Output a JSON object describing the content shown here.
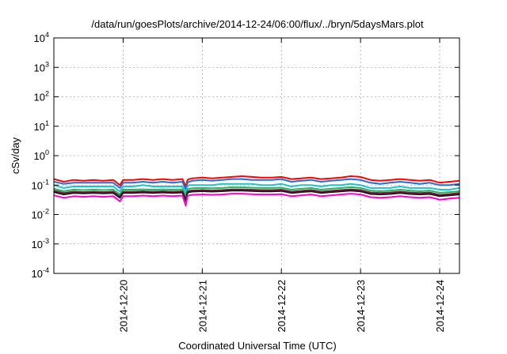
{
  "chart_data": {
    "type": "line",
    "title": "/data/run/goesPlots/archive/2014-12-24/06:00/flux/../bryn/5daysMars.plot",
    "xlabel": "Coordinated Universal Time (UTC)",
    "ylabel": "cSv/day",
    "yscale": "log",
    "ylim": [
      0.0001,
      10000
    ],
    "y_ticks": [
      {
        "value": 0.0001,
        "base": "10",
        "exp": "-4"
      },
      {
        "value": 0.001,
        "base": "10",
        "exp": "-3"
      },
      {
        "value": 0.01,
        "base": "10",
        "exp": "-2"
      },
      {
        "value": 0.1,
        "base": "10",
        "exp": "-1"
      },
      {
        "value": 1,
        "base": "10",
        "exp": "0"
      },
      {
        "value": 10,
        "base": "10",
        "exp": "1"
      },
      {
        "value": 100,
        "base": "10",
        "exp": "2"
      },
      {
        "value": 1000,
        "base": "10",
        "exp": "3"
      },
      {
        "value": 10000,
        "base": "10",
        "exp": "4"
      }
    ],
    "xlim": [
      "2014-12-19T03:00",
      "2014-12-24T06:00"
    ],
    "x_ticks": [
      "2014-12-20",
      "2014-12-21",
      "2014-12-22",
      "2014-12-23",
      "2014-12-24"
    ],
    "grid": true,
    "x": [
      "2014-12-19T03:00",
      "2014-12-19T06:00",
      "2014-12-19T09:00",
      "2014-12-19T12:00",
      "2014-12-19T15:00",
      "2014-12-19T18:00",
      "2014-12-19T21:00",
      "2014-12-19T23:00",
      "2014-12-20T00:00",
      "2014-12-20T03:00",
      "2014-12-20T06:00",
      "2014-12-20T09:00",
      "2014-12-20T12:00",
      "2014-12-20T15:00",
      "2014-12-20T18:00",
      "2014-12-20T19:00",
      "2014-12-20T19:30",
      "2014-12-20T20:00",
      "2014-12-20T21:00",
      "2014-12-21T00:00",
      "2014-12-21T03:00",
      "2014-12-21T06:00",
      "2014-12-21T09:00",
      "2014-12-21T12:00",
      "2014-12-21T15:00",
      "2014-12-21T18:00",
      "2014-12-21T21:00",
      "2014-12-22T00:00",
      "2014-12-22T03:00",
      "2014-12-22T06:00",
      "2014-12-22T09:00",
      "2014-12-22T12:00",
      "2014-12-22T15:00",
      "2014-12-22T18:00",
      "2014-12-22T21:00",
      "2014-12-23T00:00",
      "2014-12-23T03:00",
      "2014-12-23T06:00",
      "2014-12-23T09:00",
      "2014-12-23T12:00",
      "2014-12-23T15:00",
      "2014-12-23T18:00",
      "2014-12-23T21:00",
      "2014-12-24T00:00",
      "2014-12-24T03:00",
      "2014-12-24T06:00"
    ],
    "series": [
      {
        "color": "#ff0000",
        "values": [
          0.16,
          0.13,
          0.15,
          0.14,
          0.15,
          0.14,
          0.15,
          0.1,
          0.15,
          0.15,
          0.16,
          0.15,
          0.16,
          0.15,
          0.16,
          0.09,
          0.15,
          0.16,
          0.17,
          0.18,
          0.17,
          0.18,
          0.19,
          0.2,
          0.19,
          0.18,
          0.18,
          0.19,
          0.16,
          0.17,
          0.18,
          0.16,
          0.17,
          0.18,
          0.2,
          0.19,
          0.15,
          0.14,
          0.15,
          0.16,
          0.15,
          0.14,
          0.15,
          0.12,
          0.13,
          0.14
        ]
      },
      {
        "color": "#1f6fd9",
        "values": [
          0.13,
          0.11,
          0.12,
          0.12,
          0.12,
          0.12,
          0.12,
          0.08,
          0.12,
          0.12,
          0.13,
          0.12,
          0.13,
          0.12,
          0.13,
          0.07,
          0.12,
          0.13,
          0.14,
          0.15,
          0.14,
          0.15,
          0.16,
          0.16,
          0.15,
          0.15,
          0.15,
          0.16,
          0.13,
          0.14,
          0.15,
          0.13,
          0.14,
          0.15,
          0.16,
          0.15,
          0.12,
          0.11,
          0.12,
          0.13,
          0.12,
          0.11,
          0.12,
          0.1,
          0.1,
          0.11
        ]
      },
      {
        "color": "#20c2c8",
        "values": [
          0.1,
          0.08,
          0.09,
          0.09,
          0.09,
          0.09,
          0.09,
          0.06,
          0.09,
          0.09,
          0.1,
          0.09,
          0.09,
          0.09,
          0.09,
          0.05,
          0.09,
          0.1,
          0.1,
          0.1,
          0.1,
          0.11,
          0.11,
          0.11,
          0.11,
          0.1,
          0.1,
          0.11,
          0.09,
          0.1,
          0.1,
          0.09,
          0.1,
          0.1,
          0.11,
          0.1,
          0.08,
          0.08,
          0.08,
          0.09,
          0.08,
          0.08,
          0.08,
          0.07,
          0.07,
          0.08
        ]
      },
      {
        "color": "#20b858",
        "values": [
          0.075,
          0.062,
          0.07,
          0.068,
          0.07,
          0.068,
          0.07,
          0.048,
          0.07,
          0.07,
          0.072,
          0.07,
          0.072,
          0.07,
          0.072,
          0.04,
          0.07,
          0.075,
          0.078,
          0.08,
          0.078,
          0.08,
          0.085,
          0.085,
          0.082,
          0.08,
          0.08,
          0.082,
          0.07,
          0.075,
          0.08,
          0.07,
          0.075,
          0.08,
          0.085,
          0.08,
          0.065,
          0.062,
          0.065,
          0.07,
          0.065,
          0.062,
          0.065,
          0.055,
          0.058,
          0.062
        ]
      },
      {
        "color": "#8b1a4a",
        "values": [
          0.065,
          0.054,
          0.06,
          0.058,
          0.06,
          0.058,
          0.06,
          0.042,
          0.06,
          0.06,
          0.062,
          0.06,
          0.062,
          0.06,
          0.062,
          0.033,
          0.06,
          0.064,
          0.066,
          0.068,
          0.066,
          0.068,
          0.072,
          0.072,
          0.07,
          0.068,
          0.068,
          0.07,
          0.06,
          0.064,
          0.068,
          0.06,
          0.064,
          0.068,
          0.072,
          0.068,
          0.056,
          0.054,
          0.056,
          0.06,
          0.056,
          0.054,
          0.056,
          0.047,
          0.05,
          0.054
        ]
      },
      {
        "color": "#1a1a1a",
        "values": [
          0.058,
          0.048,
          0.054,
          0.052,
          0.054,
          0.052,
          0.054,
          0.037,
          0.054,
          0.054,
          0.056,
          0.054,
          0.056,
          0.054,
          0.056,
          0.029,
          0.054,
          0.058,
          0.06,
          0.062,
          0.06,
          0.062,
          0.065,
          0.065,
          0.063,
          0.061,
          0.061,
          0.063,
          0.054,
          0.058,
          0.061,
          0.054,
          0.058,
          0.061,
          0.065,
          0.061,
          0.05,
          0.048,
          0.05,
          0.054,
          0.05,
          0.048,
          0.05,
          0.042,
          0.045,
          0.048
        ]
      },
      {
        "color": "#ff00cc",
        "values": [
          0.045,
          0.037,
          0.042,
          0.04,
          0.042,
          0.04,
          0.042,
          0.028,
          0.042,
          0.042,
          0.044,
          0.042,
          0.044,
          0.042,
          0.044,
          0.02,
          0.042,
          0.045,
          0.047,
          0.048,
          0.047,
          0.048,
          0.051,
          0.051,
          0.049,
          0.048,
          0.048,
          0.049,
          0.042,
          0.045,
          0.048,
          0.042,
          0.045,
          0.048,
          0.051,
          0.048,
          0.039,
          0.037,
          0.039,
          0.042,
          0.039,
          0.037,
          0.039,
          0.032,
          0.035,
          0.037
        ]
      }
    ]
  }
}
